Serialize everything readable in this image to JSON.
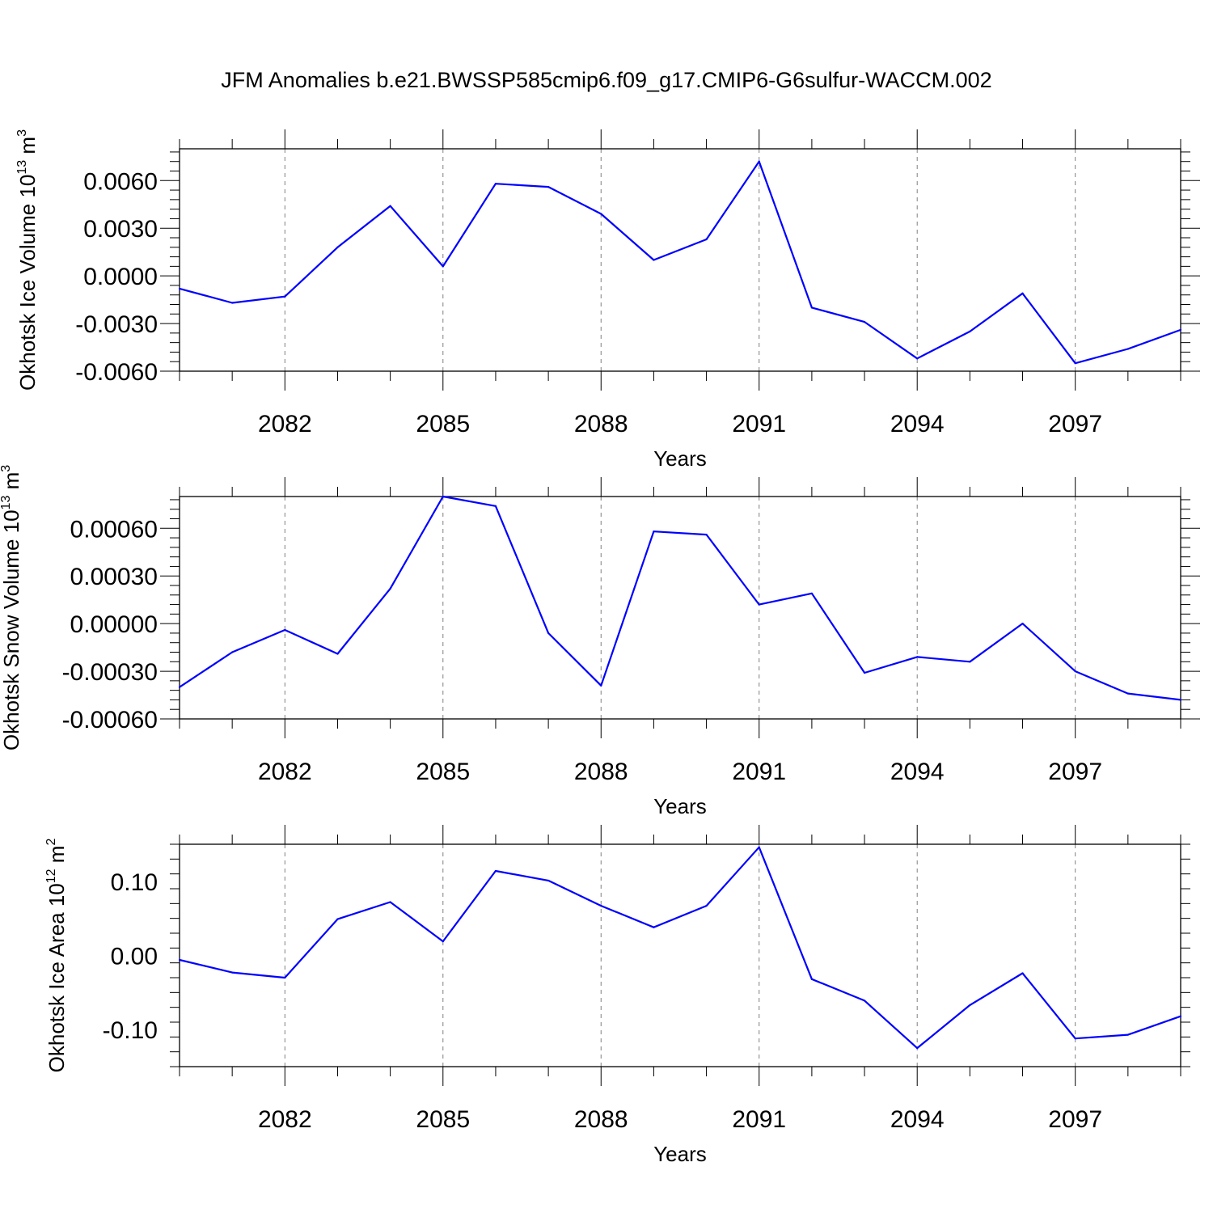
{
  "title": "JFM Anomalies b.e21.BWSSP585cmip6.f09_g17.CMIP6-G6sulfur-WACCM.002",
  "colors": {
    "line": "#0000ff",
    "axis": "#000000",
    "grid": "#808080"
  },
  "chart_data": [
    {
      "type": "line",
      "name": "ice-volume",
      "xlabel": "Years",
      "ylabel": {
        "text": "Okhotsk Ice Volume 10",
        "sup": "13",
        "unit": " m",
        "unit_sup": "3"
      },
      "xlim": [
        2080,
        2099
      ],
      "ylim": [
        -0.006,
        0.008
      ],
      "xticks": [
        2082,
        2085,
        2088,
        2091,
        2094,
        2097
      ],
      "yticks": [
        -0.006,
        -0.003,
        0.0,
        0.003,
        0.006
      ],
      "ytick_labels": [
        "-0.0060",
        "-0.0030",
        "0.0000",
        "0.0030",
        "0.0060"
      ],
      "grid": "vertical dashed at major x ticks",
      "x": [
        2080,
        2081,
        2082,
        2083,
        2084,
        2085,
        2086,
        2087,
        2088,
        2089,
        2090,
        2091,
        2092,
        2093,
        2094,
        2095,
        2096,
        2097,
        2098,
        2099
      ],
      "values": [
        -0.0008,
        -0.0017,
        -0.0013,
        0.0018,
        0.0044,
        0.0006,
        0.0058,
        0.0056,
        0.0039,
        0.001,
        0.0023,
        0.0072,
        -0.002,
        -0.0029,
        -0.0052,
        -0.0035,
        -0.0011,
        -0.0055,
        -0.0046,
        -0.0034
      ]
    },
    {
      "type": "line",
      "name": "snow-volume",
      "xlabel": "Years",
      "ylabel": {
        "text": "Okhotsk Snow Volume 10",
        "sup": "13",
        "unit": " m",
        "unit_sup": "3"
      },
      "xlim": [
        2080,
        2099
      ],
      "ylim": [
        -0.0006,
        0.0008
      ],
      "xticks": [
        2082,
        2085,
        2088,
        2091,
        2094,
        2097
      ],
      "yticks": [
        -0.0006,
        -0.0003,
        0.0,
        0.0003,
        0.0006
      ],
      "ytick_labels": [
        "-0.00060",
        "-0.00030",
        "0.00000",
        "0.00030",
        "0.00060"
      ],
      "grid": "vertical dashed at major x ticks",
      "x": [
        2080,
        2081,
        2082,
        2083,
        2084,
        2085,
        2086,
        2087,
        2088,
        2089,
        2090,
        2091,
        2092,
        2093,
        2094,
        2095,
        2096,
        2097,
        2098,
        2099
      ],
      "values": [
        -0.0004,
        -0.00018,
        -4e-05,
        -0.00019,
        0.00022,
        0.0008,
        0.00074,
        -6e-05,
        -0.00039,
        0.00058,
        0.00056,
        0.00012,
        0.00019,
        -0.00031,
        -0.00021,
        -0.00024,
        0.0,
        -0.0003,
        -0.00044,
        -0.00048
      ]
    },
    {
      "type": "line",
      "name": "ice-area",
      "xlabel": "Years",
      "ylabel": {
        "text": "Okhotsk Ice Area 10",
        "sup": "12",
        "unit": " m",
        "unit_sup": "2"
      },
      "xlim": [
        2080,
        2099
      ],
      "ylim": [
        -0.15,
        0.15
      ],
      "xticks": [
        2082,
        2085,
        2088,
        2091,
        2094,
        2097
      ],
      "yticks": [
        -0.1,
        0.0,
        0.1
      ],
      "ytick_labels": [
        "-0.10",
        "0.00",
        "0.10"
      ],
      "grid": "vertical dashed at major x ticks",
      "x": [
        2080,
        2081,
        2082,
        2083,
        2084,
        2085,
        2086,
        2087,
        2088,
        2089,
        2090,
        2091,
        2092,
        2093,
        2094,
        2095,
        2096,
        2097,
        2098,
        2099
      ],
      "values": [
        -0.006,
        -0.023,
        -0.03,
        0.049,
        0.072,
        0.019,
        0.114,
        0.101,
        0.067,
        0.038,
        0.067,
        0.146,
        -0.032,
        -0.061,
        -0.125,
        -0.067,
        -0.024,
        -0.112,
        -0.107,
        -0.082
      ]
    }
  ]
}
